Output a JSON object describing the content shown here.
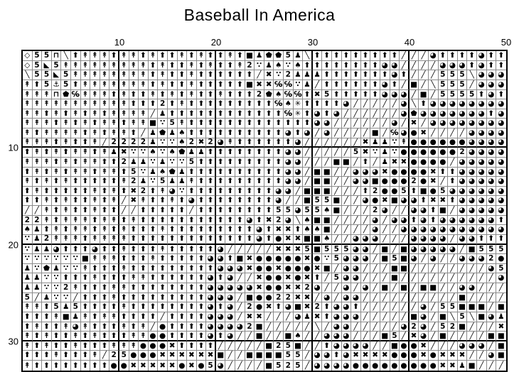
{
  "title": "Baseball In America",
  "axis": {
    "top_labels": [
      {
        "text": "10",
        "line": 10
      },
      {
        "text": "20",
        "line": 20
      },
      {
        "text": "30",
        "line": 30
      },
      {
        "text": "40",
        "line": 40
      },
      {
        "text": "50",
        "line": 50
      }
    ],
    "left_labels": [
      {
        "text": "10",
        "line": 10
      },
      {
        "text": "20",
        "line": 20
      },
      {
        "text": "30",
        "line": 30
      }
    ]
  },
  "legend": {
    "u": {
      "name": "arrow-up-symbol",
      "glyph": "⬆"
    },
    "d": {
      "name": "arrow-up-barred-symbol",
      "glyph": "↟"
    },
    "/": {
      "name": "slash-symbol",
      "glyph": "╱"
    },
    "b": {
      "name": "backslash-symbol",
      "glyph": "╲"
    },
    "Q": {
      "name": "three-quarter-circle-symbol",
      "glyph": "◕"
    },
    "C": {
      "name": "filled-circle-symbol",
      "glyph": "●"
    },
    "X": {
      "name": "heavy-x-symbol",
      "glyph": "✖"
    },
    "S": {
      "name": "filled-square-symbol",
      "glyph": "■"
    },
    "D": {
      "name": "open-diamond-symbol",
      "glyph": "◇"
    },
    "T": {
      "name": "triangle-symbol",
      "glyph": "◣"
    },
    "A": {
      "name": "anchor-symbol",
      "glyph": "⚓"
    },
    "P": {
      "name": "pentagon-symbol",
      "glyph": "⬟"
    },
    "G": {
      "name": "care-of-symbol",
      "glyph": "℅"
    },
    "p": {
      "name": "pawn-symbol",
      "glyph": "♟"
    },
    "t": {
      "name": "three-dots-symbol",
      "glyph": "∵"
    },
    "e": {
      "name": "spade-symbol",
      "glyph": "♠"
    },
    "*": {
      "name": "asterisk-star-symbol",
      "glyph": "✳"
    },
    "F": {
      "name": "table-symbol",
      "glyph": "⊓"
    },
    "2": {
      "name": "digit-two-symbol",
      "glyph": "2"
    },
    "5": {
      "name": "digit-five-symbol",
      "glyph": "5"
    }
  },
  "grid": {
    "columns": 50,
    "rows": 33,
    "cell_codes": [
      "D55FbudddudduduududuuduSpPP5pbuuuuuuuuu///QuuuuQuu",
      "D5T5ddddddddduduududuud2tpeteuuuuuuuuQQ////QQQuQu",
      "b55T5dddddddduduuduuuuuu/Xt2pppuuuuuuuQu///555bQQQu",
      "du5A5uddddddduduuduuuuuSXXGGtp/uuuuuuQu/S/b555/QQQ",
      "dddFPGddduduudududuuduuu2PeGGuX5uuuuuQQQ/S/5555uQu5",
      "ddddddddddduuu2uduuuuuuuuuGe*uuuuQ/////QbuQQQQQQQQ",
      "ddududududddd/puuuuuuuuuuuuG*uQuQ//////QPQQQQQQQuQ",
      "dddudududduddSt5duuuuuuuuuuuuuQQ//////Q/X/QQQQQQQQ",
      "duddddududdu/pPpeuuuuuuuuuuQuQ/Q////S/GQCX////QQQQ",
      "ddduduud/2222ptte2X2QduuuuuuQ//////XpptdCCCCCCQQQQ",
      "udududdudpXttetePppuuuuuuuuQQ/////5XtptCCCCCC2QQQQ",
      "dddududduu2pptptt5uuuuuuuuuQQ///SS/u/pXXCCCC/QQQQQ",
      "udududduddu5tpePpuuuuuuuuuuQQ/SS//QQQXCCCCXuuQQQQQ",
      "dududuuuuud2pt5ppduuuuuuuuuQQ/SS//QQSCCC2CX/uQQQQQ",
      "uduuuuududuX2udQtuuuuuuuuuQQ/SSS///u2CC5uSC5QQQQQQ",
      "uududuudud/XduuduQuuuuuuuuQ//S55S//QCXSQQuXXuQQQQQ",
      "//duduuduu//uuuuu/uuuuuuuu55Q55eS///2Q//QQuS/QQQQQ",
      "22dudddudduduuuuuuuuuuuQuX2QbeSS////Q/QQuQuQQQQQQ",
      "epududdududuuuduuuuuuuuuQuXXueeS////Q//QQQQQQQQQQQ",
      "tp2dddudddduuuuuuuuuuuuuQuCXXSSe//QQQ///QQQQ/QQuuu",
      "tppQuuuQuuduuuduuuuuQ/////XXX5S555QQ/S/SQQQQQ/S555",
      "ttttttSddduuuduuuuuQQuSXCCCCCXCt5QQQ/S5SQ/Q//QQQ2C",
      "ptPpttduuuduuuuuuuuuQQQXCCXCCCXS/QQ///SS////////Q5",
      "ppttuuuduuudduuuuuuQuQ//XCCXCXu/5QQ///S//////////Q",
      "pptt2duuudduuuuuuuuQQQQQXCCXX2Q//Q/Q/S/S/SS//QQ///",
      "5/ptt/uuuduuuuuuuuuQQQ/SCC22XX/Q/QQ//////////S/////Q",
      "ddu5p5uuuuduuuuuuuuQuQ/2CXuQSX2uQQu//////Q/55SSS/S",
      "uuudSpduddUuuu/uuuuQQQ/XX///QpXuQQQ/////SQ/Sb5bSQp",
      "uduudQduuudud/CuuuuQQQQ2S/////b/QQ/////Q2Q/52S///X",
      "duduududuuuddCCuuuuQuQ//S//Se//QQQ///S5/XQ/S////SS",
      "duduuduuudddCCCXuuuu/////S25S//uQQQQ//SCCX///QQQ/S",
      "uuuduuud/25CCCXXXXXXS//SSSS55/QQuQXXXXCCCXCXXX//QS",
      "duuuuuuuuCCXXXXXCXC5Q////S525/QQQQCCCCCCCCCXXpS///"
    ]
  }
}
